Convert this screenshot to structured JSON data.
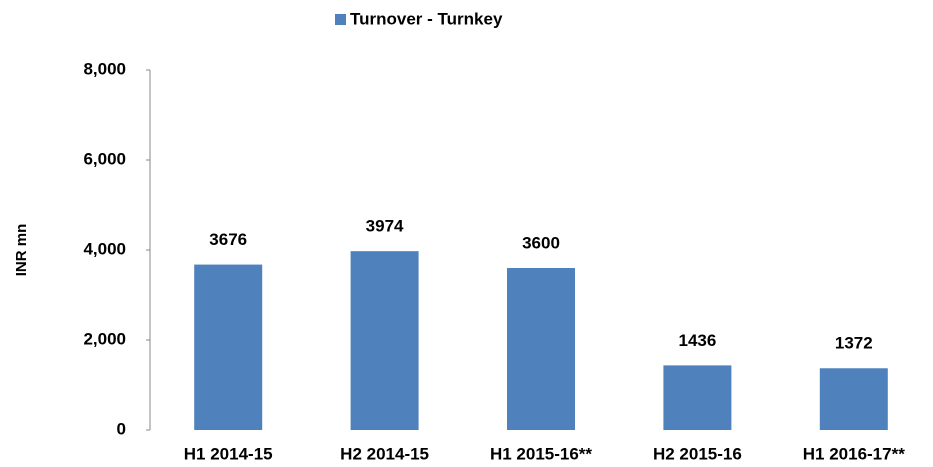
{
  "chart_data": {
    "type": "bar",
    "y_label": "INR mn",
    "categories": [
      "H1 2014-15",
      "H2 2014-15",
      "H1 2015-16**",
      "H2 2015-16",
      "H1 2016-17**"
    ],
    "series": [
      {
        "name": "Turnover - Turnkey",
        "color": "#4f81bd",
        "values": [
          3676,
          3974,
          3600,
          1436,
          1372
        ]
      }
    ],
    "ylim": [
      0,
      8000
    ],
    "yticks": [
      0,
      {
        "value": 2000,
        "label": "2,000"
      },
      {
        "value": 4000,
        "label": "4,000"
      },
      {
        "value": 6000,
        "label": "6,000"
      },
      {
        "value": 8000,
        "label": "8,000"
      }
    ],
    "grid": false,
    "legend": "top"
  }
}
